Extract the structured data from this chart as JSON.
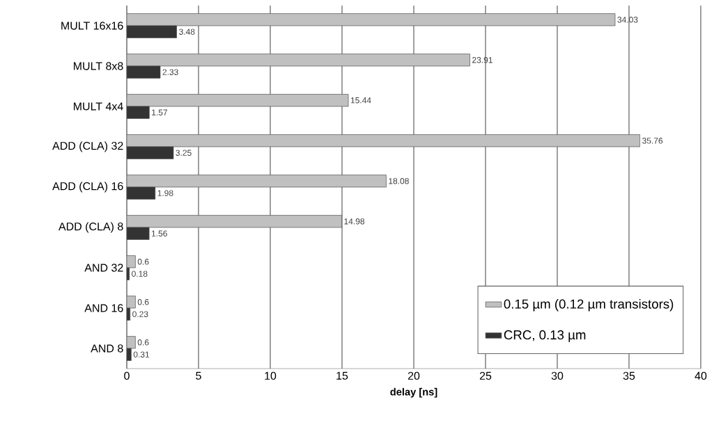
{
  "chart_data": {
    "type": "bar",
    "orientation": "horizontal",
    "xlabel": "delay [ns]",
    "categories": [
      "MULT 16x16",
      "MULT 8x8",
      "MULT 4x4",
      "ADD (CLA) 32",
      "ADD (CLA) 16",
      "ADD (CLA) 8",
      "AND 32",
      "AND 16",
      "AND 8"
    ],
    "series": [
      {
        "name": "0.15 µm (0.12 µm transistors)",
        "color": "#c0c0c0",
        "values": [
          34.03,
          23.91,
          15.44,
          35.76,
          18.08,
          14.98,
          0.6,
          0.6,
          0.6
        ]
      },
      {
        "name": "CRC, 0.13 µm",
        "color": "#333333",
        "values": [
          3.48,
          2.33,
          1.57,
          3.25,
          1.98,
          1.56,
          0.18,
          0.23,
          0.31
        ]
      }
    ],
    "xlim": [
      0,
      40
    ],
    "xticks": [
      0,
      5,
      10,
      15,
      20,
      25,
      30,
      35,
      40
    ],
    "grid": "x",
    "legend": "bottom right",
    "data_labels": true
  }
}
